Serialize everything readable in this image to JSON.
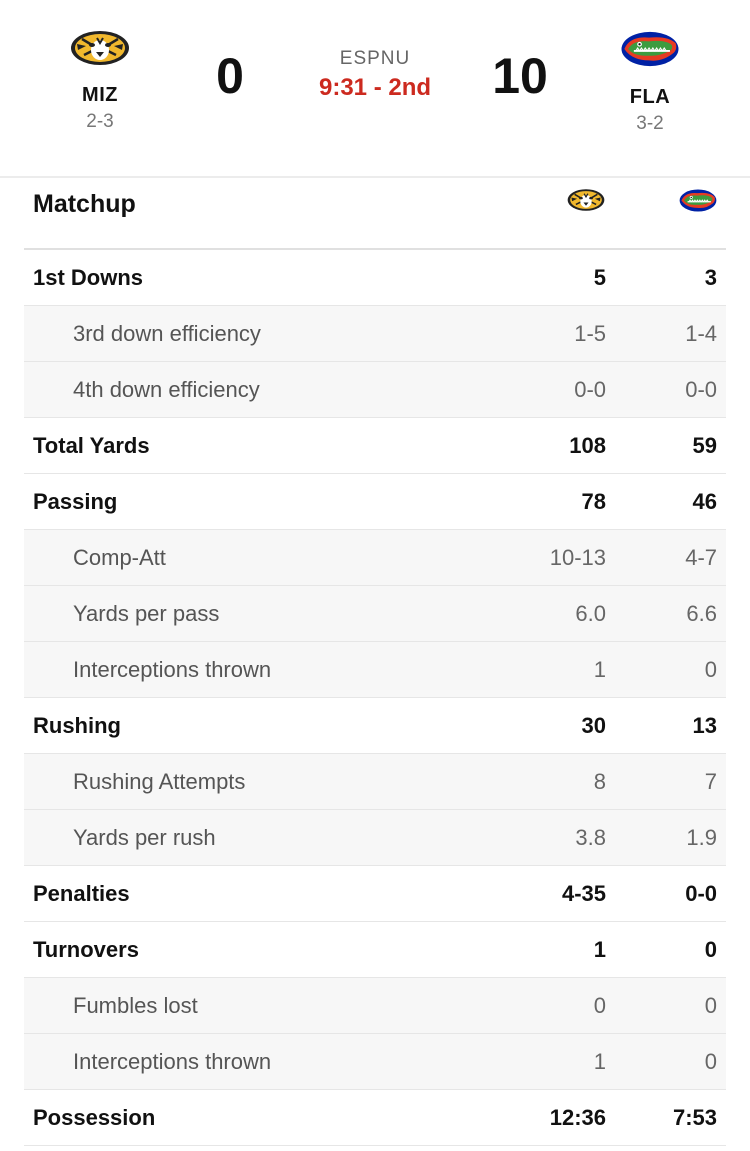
{
  "game": {
    "network": "ESPNU",
    "clock": "9:31 - 2nd",
    "away": {
      "abbr": "MIZ",
      "record": "2-3",
      "score": "0",
      "logo": "missouri-tiger-logo",
      "color": "#f1b82d"
    },
    "home": {
      "abbr": "FLA",
      "record": "3-2",
      "score": "10",
      "logo": "florida-gator-logo",
      "color": "#0021a5"
    }
  },
  "matchup": {
    "title": "Matchup",
    "rows": [
      {
        "label": "1st Downs",
        "away": "5",
        "home": "3",
        "sub": false
      },
      {
        "label": "3rd down efficiency",
        "away": "1-5",
        "home": "1-4",
        "sub": true
      },
      {
        "label": "4th down efficiency",
        "away": "0-0",
        "home": "0-0",
        "sub": true
      },
      {
        "label": "Total Yards",
        "away": "108",
        "home": "59",
        "sub": false
      },
      {
        "label": "Passing",
        "away": "78",
        "home": "46",
        "sub": false
      },
      {
        "label": "Comp-Att",
        "away": "10-13",
        "home": "4-7",
        "sub": true
      },
      {
        "label": "Yards per pass",
        "away": "6.0",
        "home": "6.6",
        "sub": true
      },
      {
        "label": "Interceptions thrown",
        "away": "1",
        "home": "0",
        "sub": true
      },
      {
        "label": "Rushing",
        "away": "30",
        "home": "13",
        "sub": false
      },
      {
        "label": "Rushing Attempts",
        "away": "8",
        "home": "7",
        "sub": true
      },
      {
        "label": "Yards per rush",
        "away": "3.8",
        "home": "1.9",
        "sub": true
      },
      {
        "label": "Penalties",
        "away": "4-35",
        "home": "0-0",
        "sub": false
      },
      {
        "label": "Turnovers",
        "away": "1",
        "home": "0",
        "sub": false
      },
      {
        "label": "Fumbles lost",
        "away": "0",
        "home": "0",
        "sub": true
      },
      {
        "label": "Interceptions thrown",
        "away": "1",
        "home": "0",
        "sub": true
      },
      {
        "label": "Possession",
        "away": "12:36",
        "home": "7:53",
        "sub": false
      }
    ]
  }
}
